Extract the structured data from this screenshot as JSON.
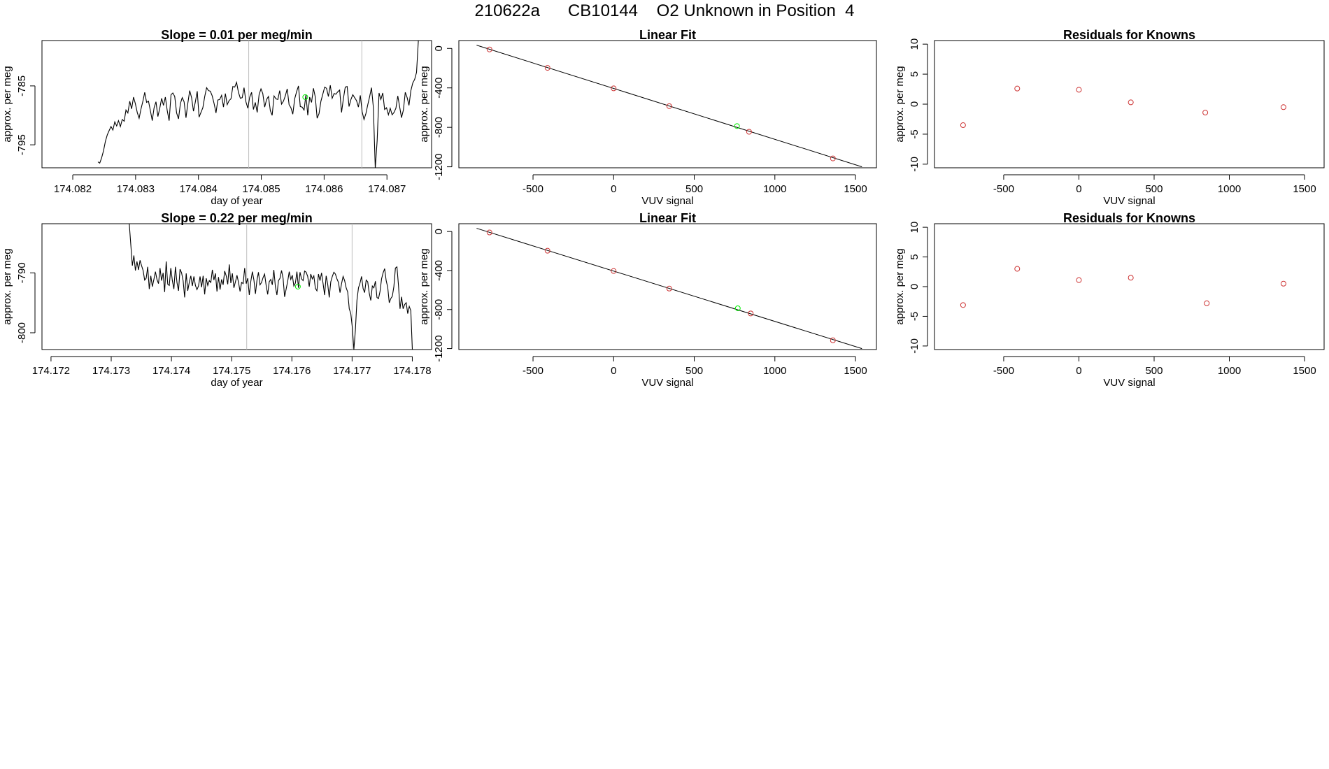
{
  "page_title": "210622a      CB10144    O2 Unknown in Position  4",
  "colors": {
    "line": "#000000",
    "known": "#cd3333",
    "unknown": "#00ee00",
    "vline": "#bebebe",
    "axis": "#000000"
  },
  "chart_data": [
    {
      "type": "line",
      "id": "ts1",
      "title": "Slope =  0.01  per meg/min",
      "xlabel": "day of year",
      "ylabel": "approx. per meg",
      "xlim": [
        174.08151,
        174.08771
      ],
      "ylim": [
        -798.9,
        -777.3
      ],
      "xticks": [
        "174.082",
        "174.083",
        "174.084",
        "174.085",
        "174.086",
        "174.087"
      ],
      "yticks": [
        "-785",
        "-795"
      ],
      "vlines": [
        174.0848,
        174.0866
      ],
      "unknown_point": {
        "x": 174.0857,
        "y": -786.9
      },
      "x_start": 174.0824,
      "x_end": 174.0875,
      "series": [
        {
          "name": "signal",
          "values": [
            -797.9,
            -798.1,
            -797.2,
            -796.0,
            -794.4,
            -793.3,
            -792.6,
            -791.9,
            -792.5,
            -791.1,
            -791.8,
            -790.9,
            -791.9,
            -790.7,
            -791.0,
            -789.1,
            -789.6,
            -787.6,
            -788.9,
            -786.9,
            -788.0,
            -789.5,
            -790.5,
            -788.9,
            -787.6,
            -786.1,
            -787.8,
            -787.6,
            -789.2,
            -790.9,
            -788.7,
            -787.7,
            -790.2,
            -788.8,
            -787.1,
            -788.3,
            -786.9,
            -789.2,
            -790.9,
            -786.5,
            -786.2,
            -786.8,
            -789.6,
            -790.6,
            -788.0,
            -787.0,
            -787.7,
            -790.4,
            -787.9,
            -785.8,
            -787.0,
            -789.3,
            -787.7,
            -785.9,
            -790.3,
            -789.5,
            -788.7,
            -786.8,
            -785.3,
            -785.8,
            -785.9,
            -786.7,
            -788.0,
            -789.6,
            -787.4,
            -787.3,
            -786.6,
            -788.6,
            -786.3,
            -788.2,
            -787.5,
            -787.2,
            -785.1,
            -785.2,
            -784.4,
            -786.1,
            -787.1,
            -787.0,
            -785.3,
            -787.7,
            -788.8,
            -786.9,
            -786.1,
            -789.0,
            -787.8,
            -789.5,
            -786.5,
            -785.5,
            -786.3,
            -788.6,
            -787.3,
            -786.8,
            -789.2,
            -790.0,
            -786.7,
            -787.2,
            -787.3,
            -785.8,
            -788.1,
            -787.6,
            -786.7,
            -785.5,
            -788.2,
            -788.7,
            -789.8,
            -787.2,
            -786.0,
            -785.0,
            -788.5,
            -788.6,
            -789.1,
            -786.5,
            -790.0,
            -786.9,
            -787.8,
            -785.4,
            -786.9,
            -790.5,
            -789.7,
            -787.6,
            -786.4,
            -785.2,
            -785.4,
            -786.8,
            -784.9,
            -787.1,
            -786.3,
            -786.4,
            -786.0,
            -785.7,
            -789.5,
            -787.1,
            -785.2,
            -785.1,
            -788.5,
            -787.3,
            -786.5,
            -787.0,
            -787.5,
            -788.6,
            -786.6,
            -789.4,
            -790.7,
            -789.7,
            -788.2,
            -786.8,
            -785.3,
            -788.7,
            -799.0,
            -794.3,
            -786.2,
            -787.3,
            -786.2,
            -789.0,
            -788.7,
            -789.9,
            -788.8,
            -789.9,
            -789.5,
            -788.8,
            -786.7,
            -788.5,
            -790.4,
            -789.1,
            -786.1,
            -787.0,
            -788.3,
            -785.8,
            -784.5,
            -783.9,
            -782.7,
            -777.3
          ]
        }
      ]
    },
    {
      "type": "scatter",
      "id": "fit1",
      "title": "Linear Fit",
      "xlabel": "VUV signal",
      "ylabel": "approx. per meg",
      "xlim": [
        -960,
        1630
      ],
      "ylim": [
        -1210,
        80
      ],
      "xticks": [
        -500,
        0,
        500,
        1000,
        1500
      ],
      "yticks": [
        0,
        -400,
        -800,
        -1200
      ],
      "line": [
        [
          -850,
          33
        ],
        [
          1540,
          -1200
        ]
      ],
      "known_points": [
        [
          -770,
          -10
        ],
        [
          -410,
          -197
        ],
        [
          0,
          -405
        ],
        [
          345,
          -585
        ],
        [
          840,
          -845
        ],
        [
          1360,
          -1115
        ]
      ],
      "unknown_point": [
        765,
        -787
      ]
    },
    {
      "type": "scatter",
      "id": "res1",
      "title": "Residuals for Knowns",
      "xlabel": "VUV signal",
      "ylabel": "approx. per meg",
      "xlim": [
        -960,
        1630
      ],
      "ylim": [
        -10.6,
        10.6
      ],
      "xticks": [
        -500,
        0,
        500,
        1000,
        1500
      ],
      "yticks": [
        10,
        5,
        0,
        -5,
        -10
      ],
      "known_points": [
        [
          -770,
          -3.5
        ],
        [
          -410,
          2.6
        ],
        [
          0,
          2.4
        ],
        [
          345,
          0.3
        ],
        [
          840,
          -1.4
        ],
        [
          1360,
          -0.5
        ]
      ]
    },
    {
      "type": "line",
      "id": "ts2",
      "title": "Slope =  0.22  per meg/min",
      "xlabel": "day of year",
      "ylabel": "approx. per meg",
      "xlim": [
        174.17185,
        174.17832
      ],
      "ylim": [
        -802.8,
        -781.8
      ],
      "xticks": [
        "174.172",
        "174.173",
        "174.174",
        "174.175",
        "174.176",
        "174.177",
        "174.178"
      ],
      "yticks": [
        "-790",
        "-800"
      ],
      "vlines": [
        174.17525,
        174.177
      ],
      "unknown_point": {
        "x": 174.1761,
        "y": -792.3
      },
      "x_start": 174.1733,
      "x_end": 174.178,
      "series": [
        {
          "name": "signal",
          "values": [
            -781.8,
            -785.3,
            -788.8,
            -787.1,
            -789.6,
            -788.1,
            -789.5,
            -787.9,
            -788.8,
            -789.6,
            -791.2,
            -790.9,
            -789.0,
            -792.7,
            -790.5,
            -792.3,
            -791.1,
            -789.8,
            -791.1,
            -791.8,
            -789.2,
            -791.3,
            -790.0,
            -793.2,
            -788.1,
            -791.9,
            -792.1,
            -789.2,
            -791.3,
            -792.7,
            -789.0,
            -791.6,
            -793.0,
            -789.4,
            -790.0,
            -791.3,
            -794.1,
            -790.1,
            -793.0,
            -791.6,
            -790.5,
            -792.2,
            -790.6,
            -792.1,
            -792.8,
            -792.2,
            -790.6,
            -792.4,
            -790.5,
            -793.6,
            -790.9,
            -792.1,
            -791.3,
            -791.6,
            -789.5,
            -791.2,
            -790.1,
            -793.1,
            -790.7,
            -792.8,
            -791.1,
            -792.0,
            -789.7,
            -790.5,
            -791.9,
            -788.6,
            -791.7,
            -790.1,
            -792.5,
            -791.5,
            -790.4,
            -791.6,
            -793.1,
            -791.6,
            -791.8,
            -789.2,
            -791.8,
            -790.9,
            -793.7,
            -791.4,
            -789.8,
            -791.2,
            -793.5,
            -791.3,
            -789.9,
            -792.0,
            -791.6,
            -790.8,
            -790.2,
            -792.1,
            -793.6,
            -791.5,
            -791.1,
            -792.0,
            -789.5,
            -792.3,
            -793.7,
            -791.3,
            -790.9,
            -789.6,
            -790.9,
            -794.0,
            -792.7,
            -791.4,
            -789.8,
            -791.1,
            -790.4,
            -792.2,
            -791.7,
            -789.8,
            -792.5,
            -789.9,
            -791.0,
            -791.3,
            -789.7,
            -789.9,
            -790.6,
            -792.3,
            -790.2,
            -791.0,
            -790.5,
            -792.6,
            -793.0,
            -790.2,
            -791.3,
            -790.0,
            -791.8,
            -793.7,
            -790.5,
            -791.9,
            -794.1,
            -791.5,
            -790.6,
            -789.9,
            -790.2,
            -791.0,
            -791.6,
            -793.3,
            -791.8,
            -790.6,
            -791.3,
            -792.5,
            -793.2,
            -796.0,
            -796.8,
            -799.1,
            -802.8,
            -799.5,
            -794.6,
            -792.5,
            -791.7,
            -790.6,
            -792.6,
            -793.3,
            -791.2,
            -791.5,
            -793.4,
            -794.6,
            -792.2,
            -792.5,
            -791.4,
            -794.1,
            -794.3,
            -793.1,
            -791.0,
            -790.0,
            -789.3,
            -791.3,
            -792.4,
            -795.0,
            -794.3,
            -793.9,
            -792.3,
            -789.2,
            -789.0,
            -792.1,
            -796.0,
            -794.0,
            -796.0,
            -795.3,
            -795.0,
            -796.8,
            -795.6,
            -796.3,
            -802.8
          ]
        }
      ]
    },
    {
      "type": "scatter",
      "id": "fit2",
      "title": "Linear Fit",
      "xlabel": "VUV signal",
      "ylabel": "approx. per meg",
      "xlim": [
        -960,
        1630
      ],
      "ylim": [
        -1210,
        80
      ],
      "xticks": [
        -500,
        0,
        500,
        1000,
        1500
      ],
      "yticks": [
        0,
        -400,
        -800,
        -1200
      ],
      "line": [
        [
          -850,
          33
        ],
        [
          1540,
          -1200
        ]
      ],
      "known_points": [
        [
          -770,
          -10
        ],
        [
          -410,
          -197
        ],
        [
          0,
          -405
        ],
        [
          345,
          -585
        ],
        [
          850,
          -840
        ],
        [
          1360,
          -1115
        ]
      ],
      "unknown_point": [
        770,
        -787
      ]
    },
    {
      "type": "scatter",
      "id": "res2",
      "title": "Residuals for Knowns",
      "xlabel": "VUV signal",
      "ylabel": "approx. per meg",
      "xlim": [
        -960,
        1630
      ],
      "ylim": [
        -10.6,
        10.6
      ],
      "xticks": [
        -500,
        0,
        500,
        1000,
        1500
      ],
      "yticks": [
        10,
        5,
        0,
        -5,
        -10
      ],
      "known_points": [
        [
          -770,
          -3.1
        ],
        [
          -410,
          3.0
        ],
        [
          0,
          1.1
        ],
        [
          345,
          1.5
        ],
        [
          850,
          -2.8
        ],
        [
          1360,
          0.5
        ]
      ]
    }
  ]
}
